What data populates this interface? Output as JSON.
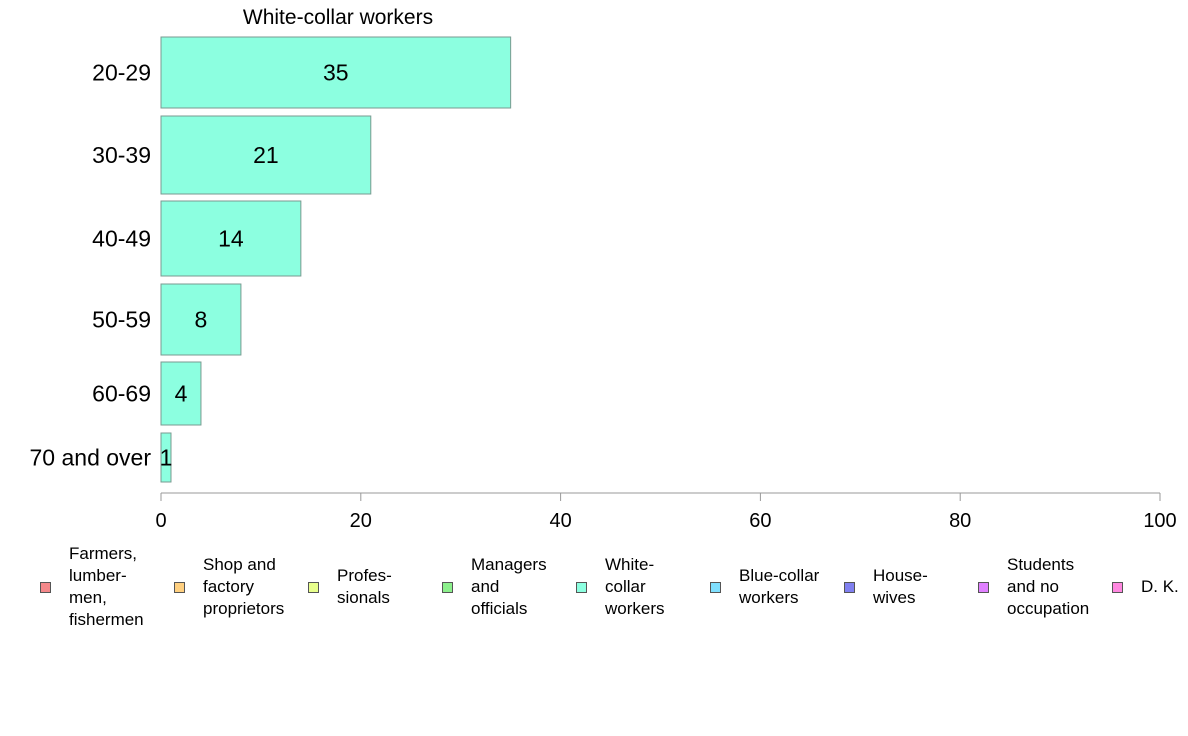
{
  "chart_data": {
    "type": "bar",
    "orientation": "horizontal",
    "title": "White-collar workers",
    "categories": [
      "20-29",
      "30-39",
      "40-49",
      "50-59",
      "60-69",
      "70 and over"
    ],
    "series": [
      {
        "name": "White-collar workers",
        "values": [
          35,
          21,
          14,
          8,
          4,
          1
        ],
        "color": "#8cffe0"
      }
    ],
    "xlabel": "",
    "ylabel": "",
    "xlim": [
      0,
      100
    ],
    "xticks": [
      0,
      20,
      40,
      60,
      80,
      100
    ],
    "grid": false,
    "legend_position": "bottom"
  },
  "legend": {
    "items": [
      {
        "label": "Farmers,\nlumber-\nmen,\nfishermen",
        "color": "#f4888a"
      },
      {
        "label": "Shop and\nfactory\nproprietors",
        "color": "#ffd080"
      },
      {
        "label": "Profes-\nsionals",
        "color": "#e8ff8c"
      },
      {
        "label": "Managers\nand\nofficials",
        "color": "#8cf08c"
      },
      {
        "label": "White-\ncollar\nworkers",
        "color": "#8cffe0"
      },
      {
        "label": "Blue-collar\nworkers",
        "color": "#80e0ff"
      },
      {
        "label": "House-\nwives",
        "color": "#8080f0"
      },
      {
        "label": "Students\nand no\noccupation",
        "color": "#e080ff"
      },
      {
        "label": "D. K.",
        "color": "#ff88e0"
      }
    ]
  }
}
